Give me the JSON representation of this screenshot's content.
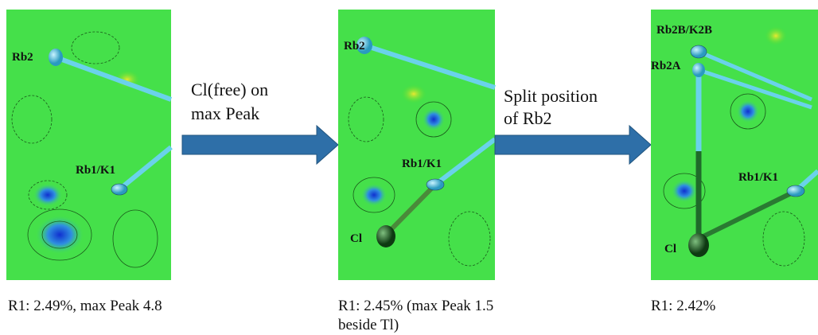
{
  "panels": [
    {
      "labels": [
        "Rb2",
        "Rb1/K1"
      ],
      "caption": [
        "R1: 2.49%, max Peak 4.8"
      ]
    },
    {
      "labels": [
        "Rb2",
        "Rb1/K1",
        "Cl"
      ],
      "caption": [
        "R1: 2.45% (max Peak 1.5",
        "beside Tl)"
      ]
    },
    {
      "labels": [
        "Rb2B/K2B",
        "Rb2A",
        "Rb1/K1",
        "Cl"
      ],
      "caption": [
        "R1: 2.42%"
      ]
    }
  ],
  "arrows": [
    {
      "label": [
        "Cl(free) on",
        "max Peak"
      ]
    },
    {
      "label": [
        "Split position",
        "of Rb2"
      ]
    }
  ]
}
